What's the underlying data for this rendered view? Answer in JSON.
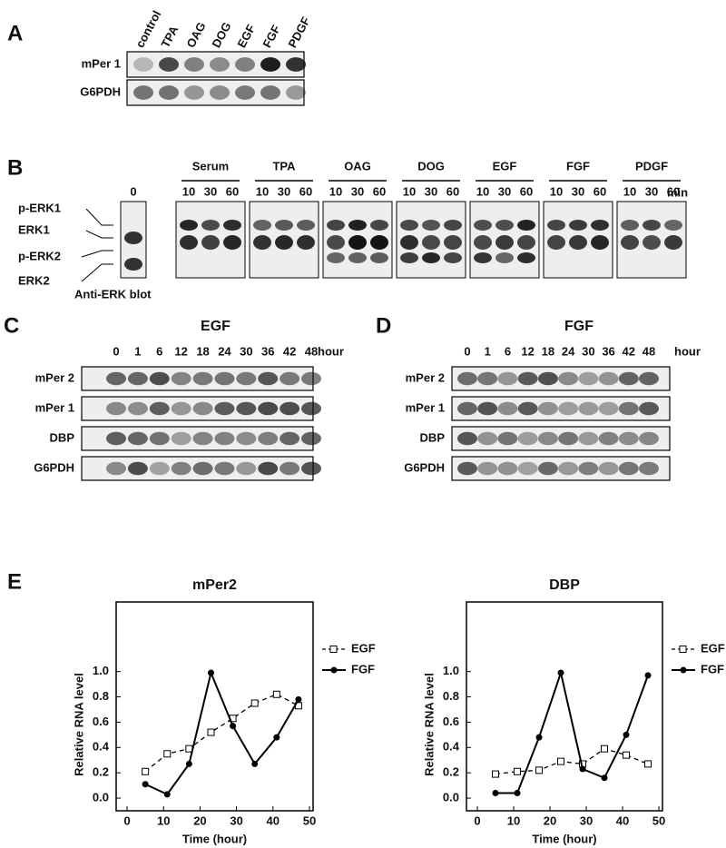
{
  "panels": {
    "a": {
      "label": "A",
      "lanes": [
        "control",
        "TPA",
        "OAG",
        "DOG",
        "EGF",
        "FGF",
        "PDGF"
      ],
      "rows": [
        "mPer 1",
        "G6PDH"
      ]
    },
    "b": {
      "label": "B",
      "zero": "0",
      "groups": [
        {
          "name": "Serum",
          "times": [
            "10",
            "30",
            "60"
          ]
        },
        {
          "name": "TPA",
          "times": [
            "10",
            "30",
            "60"
          ]
        },
        {
          "name": "OAG",
          "times": [
            "10",
            "30",
            "60"
          ]
        },
        {
          "name": "DOG",
          "times": [
            "10",
            "30",
            "60"
          ]
        },
        {
          "name": "EGF",
          "times": [
            "10",
            "30",
            "60"
          ]
        },
        {
          "name": "FGF",
          "times": [
            "10",
            "30",
            "60"
          ]
        },
        {
          "name": "PDGF",
          "times": [
            "10",
            "30",
            "60"
          ]
        }
      ],
      "unit": "min",
      "rows": [
        "p-ERK1",
        "ERK1",
        "p-ERK2",
        "ERK2"
      ],
      "caption": "Anti-ERK blot"
    },
    "c": {
      "label": "C",
      "title": "EGF",
      "times": [
        "0",
        "1",
        "6",
        "12",
        "18",
        "24",
        "30",
        "36",
        "42",
        "48"
      ],
      "unit": "hour",
      "rows": [
        "mPer 2",
        "mPer 1",
        "DBP",
        "G6PDH"
      ]
    },
    "d": {
      "label": "D",
      "title": "FGF",
      "times": [
        "0",
        "1",
        "6",
        "12",
        "18",
        "24",
        "30",
        "36",
        "42",
        "48"
      ],
      "unit": "hour",
      "rows": [
        "mPer 2",
        "mPer 1",
        "DBP",
        "G6PDH"
      ]
    },
    "e": {
      "label": "E"
    }
  },
  "chart_data": [
    {
      "type": "line",
      "title": "mPer2",
      "x_label": "Time (hour)",
      "y_label": "Relative RNA level",
      "x": [
        5,
        11,
        17,
        23,
        29,
        35,
        41,
        47
      ],
      "series": [
        {
          "name": "EGF",
          "color": "#000000",
          "marker": "square",
          "dashed": true,
          "values": [
            0.21,
            0.35,
            0.39,
            0.52,
            0.63,
            0.75,
            0.82,
            0.73
          ]
        },
        {
          "name": "FGF",
          "color": "#000000",
          "marker": "circle",
          "dashed": false,
          "values": [
            0.11,
            0.03,
            0.27,
            0.99,
            0.57,
            0.27,
            0.48,
            0.78
          ]
        }
      ],
      "xlim": [
        -3,
        51
      ],
      "xticks": [
        0,
        10,
        20,
        30,
        40,
        50
      ],
      "ylim": [
        -0.1,
        1.55
      ],
      "yticks": [
        {
          "value": 0,
          "label": "0.0"
        },
        0.2,
        0.4,
        0.6,
        0.8,
        {
          "value": 1,
          "label": "1.0"
        }
      ],
      "legend": "right"
    },
    {
      "type": "line",
      "title": "DBP",
      "x_label": "Time (hour)",
      "y_label": "Relative RNA level",
      "x": [
        5,
        11,
        17,
        23,
        29,
        35,
        41,
        47
      ],
      "series": [
        {
          "name": "EGF",
          "color": "#000000",
          "marker": "square",
          "dashed": true,
          "values": [
            0.19,
            0.21,
            0.22,
            0.29,
            0.27,
            0.39,
            0.34,
            0.27
          ]
        },
        {
          "name": "FGF",
          "color": "#000000",
          "marker": "circle",
          "dashed": false,
          "values": [
            0.04,
            0.04,
            0.48,
            0.99,
            0.23,
            0.16,
            0.5,
            0.97
          ]
        }
      ],
      "xlim": [
        -3,
        51
      ],
      "xticks": [
        0,
        10,
        20,
        30,
        40,
        50
      ],
      "ylim": [
        -0.1,
        1.55
      ],
      "yticks": [
        {
          "value": 0,
          "label": "0.0"
        },
        0.2,
        0.4,
        0.6,
        0.8,
        {
          "value": 1,
          "label": "1.0"
        }
      ],
      "legend": "right"
    }
  ]
}
